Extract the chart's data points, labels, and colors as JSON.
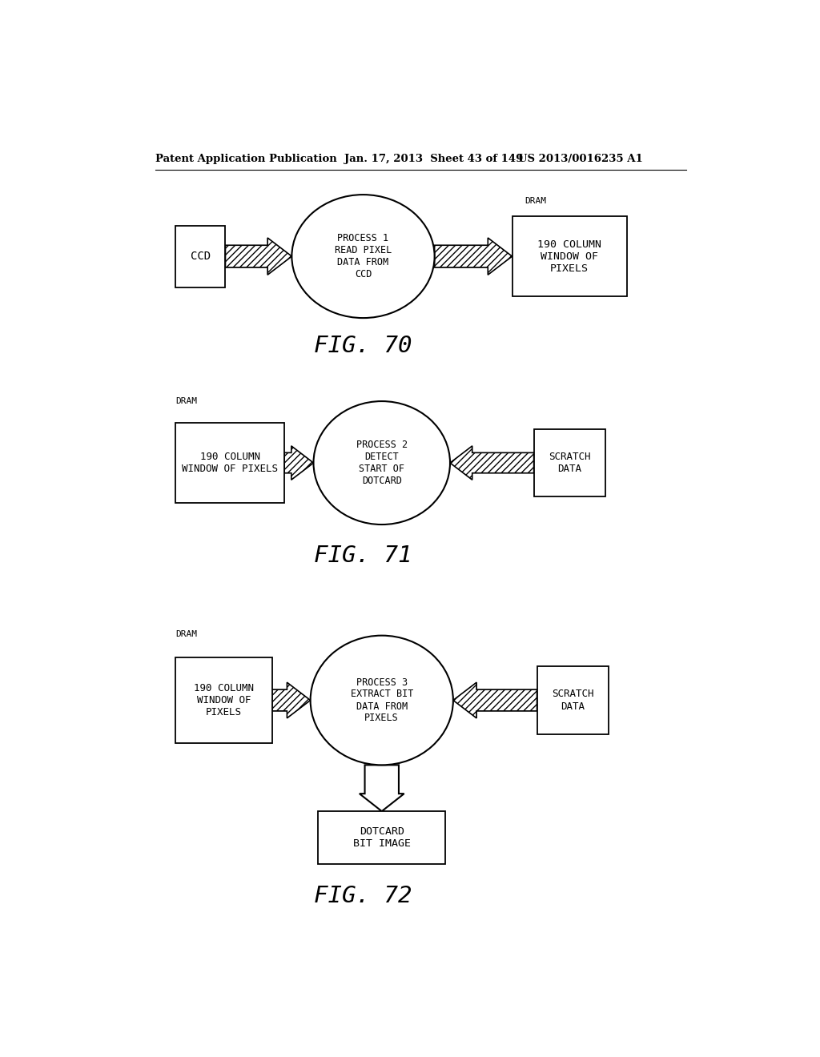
{
  "header_left": "Patent Application Publication",
  "header_mid": "Jan. 17, 2013  Sheet 43 of 149",
  "header_right": "US 2013/0016235 A1",
  "bg_color": "#ffffff",
  "fig70": {
    "title": "FIG. 70",
    "left_box_text": "CCD",
    "circle_text": "PROCESS 1\nREAD PIXEL\nDATA FROM\nCCD",
    "right_label": "DRAM",
    "right_box_text": "190 COLUMN\nWINDOW OF\nPIXELS"
  },
  "fig71": {
    "title": "FIG. 71",
    "left_label": "DRAM",
    "left_box_text": "190 COLUMN\nWINDOW OF PIXELS",
    "circle_text": "PROCESS 2\nDETECT\nSTART OF\nDOTCARD",
    "right_box_text": "SCRATCH\nDATA"
  },
  "fig72": {
    "title": "FIG. 72",
    "left_label": "DRAM",
    "left_box_text": "190 COLUMN\nWINDOW OF\nPIXELS",
    "circle_text": "PROCESS 3\nEXTRACT BIT\nDATA FROM\nPIXELS",
    "right_box_text": "SCRATCH\nDATA",
    "bottom_box_text": "DOTCARD\nBIT IMAGE"
  }
}
